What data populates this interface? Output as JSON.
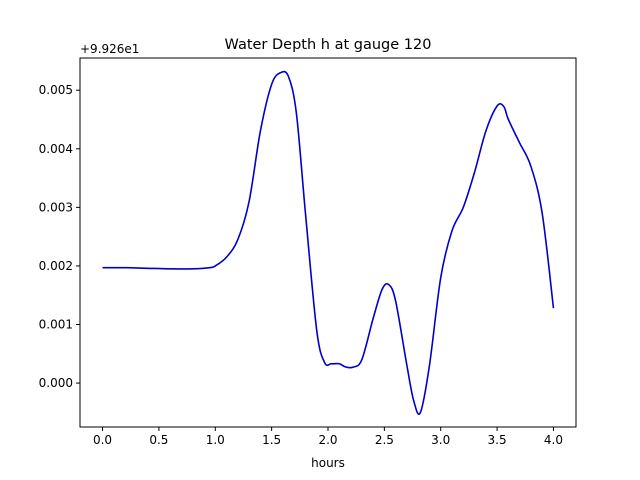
{
  "chart_data": {
    "type": "line",
    "title": "Water Depth h at gauge 120",
    "xlabel": "hours",
    "ylabel": "",
    "offset_label": "+9.926e1",
    "xlim": [
      -0.2,
      4.2
    ],
    "ylim": [
      -0.00075,
      0.00555
    ],
    "xticks": [
      0.0,
      0.5,
      1.0,
      1.5,
      2.0,
      2.5,
      3.0,
      3.5,
      4.0
    ],
    "xtick_labels": [
      "0.0",
      "0.5",
      "1.0",
      "1.5",
      "2.0",
      "2.5",
      "3.0",
      "3.5",
      "4.0"
    ],
    "yticks": [
      0.0,
      0.001,
      0.002,
      0.003,
      0.004,
      0.005
    ],
    "ytick_labels": [
      "0.000",
      "0.001",
      "0.002",
      "0.003",
      "0.004",
      "0.005"
    ],
    "grid": false,
    "series": [
      {
        "color": "#0000cc",
        "x": [
          0.0,
          0.2,
          0.4,
          0.6,
          0.8,
          0.95,
          1.0,
          1.1,
          1.2,
          1.3,
          1.4,
          1.5,
          1.58,
          1.65,
          1.72,
          1.8,
          1.9,
          1.97,
          2.03,
          2.1,
          2.15,
          2.22,
          2.3,
          2.4,
          2.48,
          2.54,
          2.6,
          2.7,
          2.76,
          2.82,
          2.9,
          3.0,
          3.1,
          3.2,
          3.3,
          3.4,
          3.5,
          3.56,
          3.6,
          3.7,
          3.8,
          3.9,
          4.0
        ],
        "y": [
          0.00197,
          0.00197,
          0.00196,
          0.00195,
          0.00195,
          0.00197,
          0.002,
          0.00215,
          0.00245,
          0.0031,
          0.0043,
          0.0051,
          0.0053,
          0.00523,
          0.0046,
          0.0029,
          0.0009,
          0.00035,
          0.00033,
          0.00033,
          0.00028,
          0.00027,
          0.0004,
          0.0011,
          0.0016,
          0.00168,
          0.0014,
          0.0003,
          -0.0003,
          -0.0005,
          0.0003,
          0.0018,
          0.0026,
          0.003,
          0.0036,
          0.0043,
          0.00473,
          0.00472,
          0.0045,
          0.0041,
          0.0037,
          0.0029,
          0.00128
        ]
      }
    ]
  }
}
